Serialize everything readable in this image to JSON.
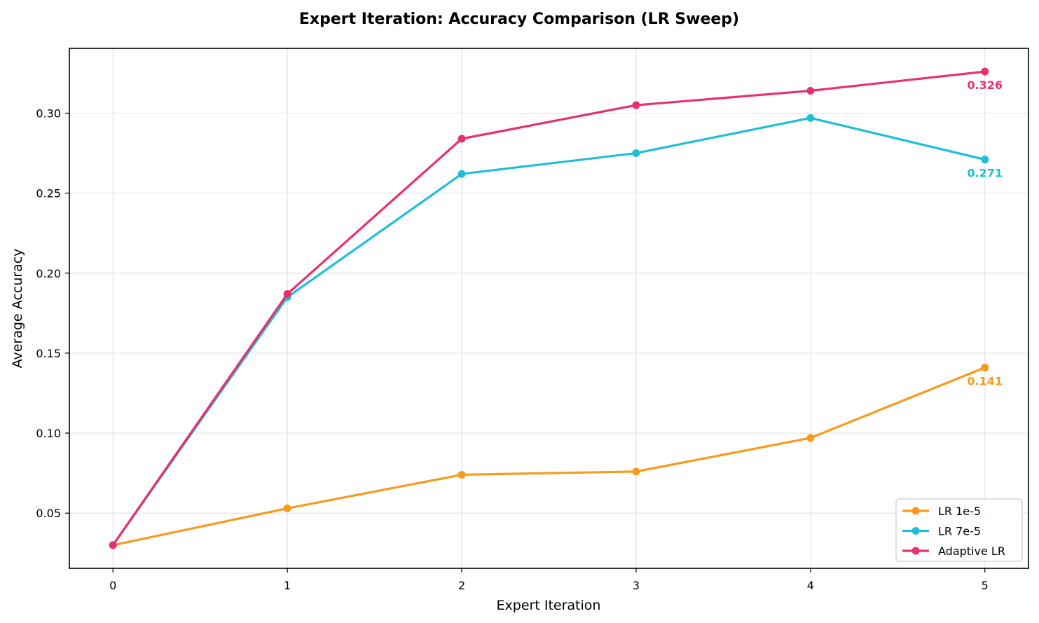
{
  "chart_data": {
    "type": "line",
    "title": "Expert Iteration: Accuracy Comparison (LR Sweep)",
    "xlabel": "Expert Iteration",
    "ylabel": "Average Accuracy",
    "x": [
      0,
      1,
      2,
      3,
      4,
      5
    ],
    "x_tick_labels": [
      "0",
      "1",
      "2",
      "3",
      "4",
      "5"
    ],
    "y_ticks": [
      0.05,
      0.1,
      0.15,
      0.2,
      0.25,
      0.3
    ],
    "y_tick_labels": [
      "0.05",
      "0.10",
      "0.15",
      "0.20",
      "0.25",
      "0.30"
    ],
    "xlim": [
      -0.25,
      5.25
    ],
    "ylim": [
      0.0155,
      0.3405
    ],
    "grid": true,
    "legend_position": "lower-right",
    "series": [
      {
        "name": "LR 1e-5",
        "color": "#f89a1c",
        "values": [
          0.03,
          0.053,
          0.074,
          0.076,
          0.097,
          0.141
        ],
        "end_label": "0.141"
      },
      {
        "name": "LR 7e-5",
        "color": "#1ebfd6",
        "values": [
          0.03,
          0.185,
          0.262,
          0.275,
          0.297,
          0.271
        ],
        "end_label": "0.271"
      },
      {
        "name": "Adaptive LR",
        "color": "#e8306e",
        "values": [
          0.03,
          0.187,
          0.284,
          0.305,
          0.314,
          0.326
        ],
        "end_label": "0.326"
      }
    ]
  }
}
